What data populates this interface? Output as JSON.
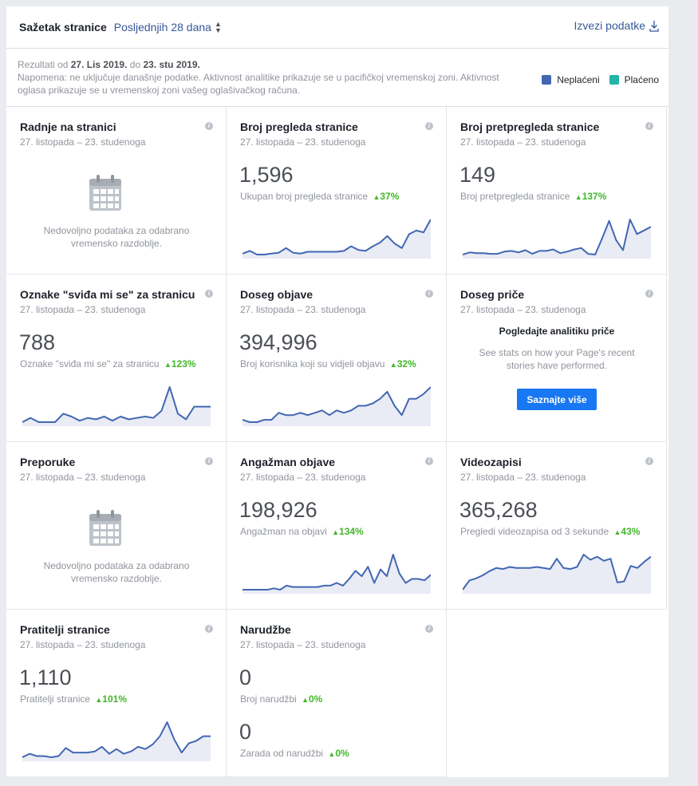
{
  "header": {
    "title": "Sažetak stranice",
    "range_label": "Posljednjih 28 dana",
    "export_label": "Izvezi podatke"
  },
  "notice": {
    "prefix": "Rezultati od",
    "date_from": "27. Lis 2019.",
    "mid": "do",
    "date_to": "23. stu 2019.",
    "note": "Napomena: ne uključuje današnje podatke. Aktivnost analitike prikazuje se u pacifičkoj vremenskoj zoni. Aktivnost oglasa prikazuje se u vremenskoj zoni vašeg oglašivačkog računa."
  },
  "legend": [
    {
      "label": "Neplaćeni",
      "color": "#4267b2"
    },
    {
      "label": "Plaćeno",
      "color": "#23b5a4"
    }
  ],
  "colors": {
    "line": "#4267b2",
    "area": "#e9ebf5",
    "delta": "#42b72a"
  },
  "cards": [
    {
      "title": "Radnje na stranici",
      "date": "27. listopada – 23. studenoga",
      "empty_text": "Nedovoljno podataka za odabrano vremensko razdoblje."
    },
    {
      "title": "Broj pregleda stranice",
      "date": "27. listopada – 23. studenoga",
      "value": "1,596",
      "metric": "Ukupan broj pregleda stranice",
      "delta": "37%",
      "series": [
        7,
        10,
        6,
        6,
        7,
        8,
        13,
        8,
        7,
        9,
        9,
        9,
        9,
        9,
        10,
        15,
        11,
        10,
        15,
        19,
        26,
        18,
        13,
        28,
        32,
        30,
        44
      ]
    },
    {
      "title": "Broj pretpregleda stranice",
      "date": "27. listopada – 23. studenoga",
      "value": "149",
      "metric": "Broj pretpregleda stranice",
      "delta": "137%",
      "series": [
        2,
        5,
        4,
        4,
        3,
        3,
        6,
        7,
        5,
        8,
        3,
        7,
        7,
        9,
        4,
        6,
        9,
        11,
        3,
        2,
        24,
        48,
        22,
        8,
        50,
        30,
        35,
        40
      ]
    },
    {
      "title": "Oznake \"sviđa mi se\" za stranicu",
      "date": "27. listopada – 23. studenoga",
      "value": "788",
      "metric": "Oznake \"sviđa mi se\" za stranicu",
      "delta": "123%",
      "series": [
        2,
        5,
        2,
        2,
        2,
        8,
        6,
        3,
        5,
        4,
        6,
        3,
        6,
        4,
        5,
        6,
        5,
        10,
        27,
        8,
        4,
        13,
        13,
        13
      ]
    },
    {
      "title": "Doseg objave",
      "date": "27. listopada – 23. studenoga",
      "value": "394,996",
      "metric": "Broj korisnika koji su vidjeli objavu",
      "delta": "32%",
      "series": [
        6,
        5,
        5,
        6,
        6,
        9,
        8,
        8,
        9,
        8,
        9,
        10,
        8,
        10,
        9,
        10,
        12,
        12,
        13,
        15,
        18,
        12,
        8,
        15,
        15,
        17,
        20
      ]
    },
    {
      "title": "Doseg priče",
      "date": "27. listopada – 23. studenoga",
      "story_head": "Pogledajte analitiku priče",
      "story_body": "See stats on how your Page's recent stories have performed.",
      "button": "Saznajte više"
    },
    {
      "title": "Preporuke",
      "date": "27. listopada – 23. studenoga",
      "empty_text": "Nedovoljno podataka za odabrano vremensko razdoblje."
    },
    {
      "title": "Angažman objave",
      "date": "27. listopada – 23. studenoga",
      "value": "198,926",
      "metric": "Angažman na objavi",
      "delta": "134%",
      "series": [
        2,
        2,
        2,
        2,
        2,
        3,
        2,
        5,
        4,
        4,
        4,
        4,
        4,
        5,
        5,
        7,
        5,
        10,
        16,
        12,
        19,
        7,
        17,
        12,
        28,
        14,
        7,
        10,
        10,
        9,
        13
      ]
    },
    {
      "title": "Videozapisi",
      "date": "27. listopada – 23. studenoga",
      "value": "365,268",
      "metric": "Pregledi videozapisa od 3 sekunde",
      "delta": "43%",
      "series": [
        3,
        12,
        14,
        17,
        21,
        24,
        23,
        25,
        24,
        24,
        24,
        25,
        24,
        23,
        33,
        24,
        23,
        25,
        37,
        32,
        35,
        31,
        33,
        10,
        11,
        26,
        24,
        30,
        35
      ]
    },
    {
      "title": "Pratitelji stranice",
      "date": "27. listopada – 23. studenoga",
      "value": "1,110",
      "metric": "Pratitelji stranice",
      "delta": "101%",
      "series": [
        2,
        5,
        3,
        3,
        2,
        3,
        10,
        6,
        6,
        6,
        7,
        11,
        5,
        9,
        5,
        7,
        11,
        9,
        13,
        20,
        32,
        17,
        6,
        14,
        16,
        20,
        20
      ]
    },
    {
      "title": "Narudžbe",
      "date": "27. listopada – 23. studenoga",
      "value": "0",
      "metric": "Broj narudžbi",
      "delta": "0%",
      "value2": "0",
      "metric2": "Zarada od narudžbi",
      "delta2": "0%"
    }
  ]
}
